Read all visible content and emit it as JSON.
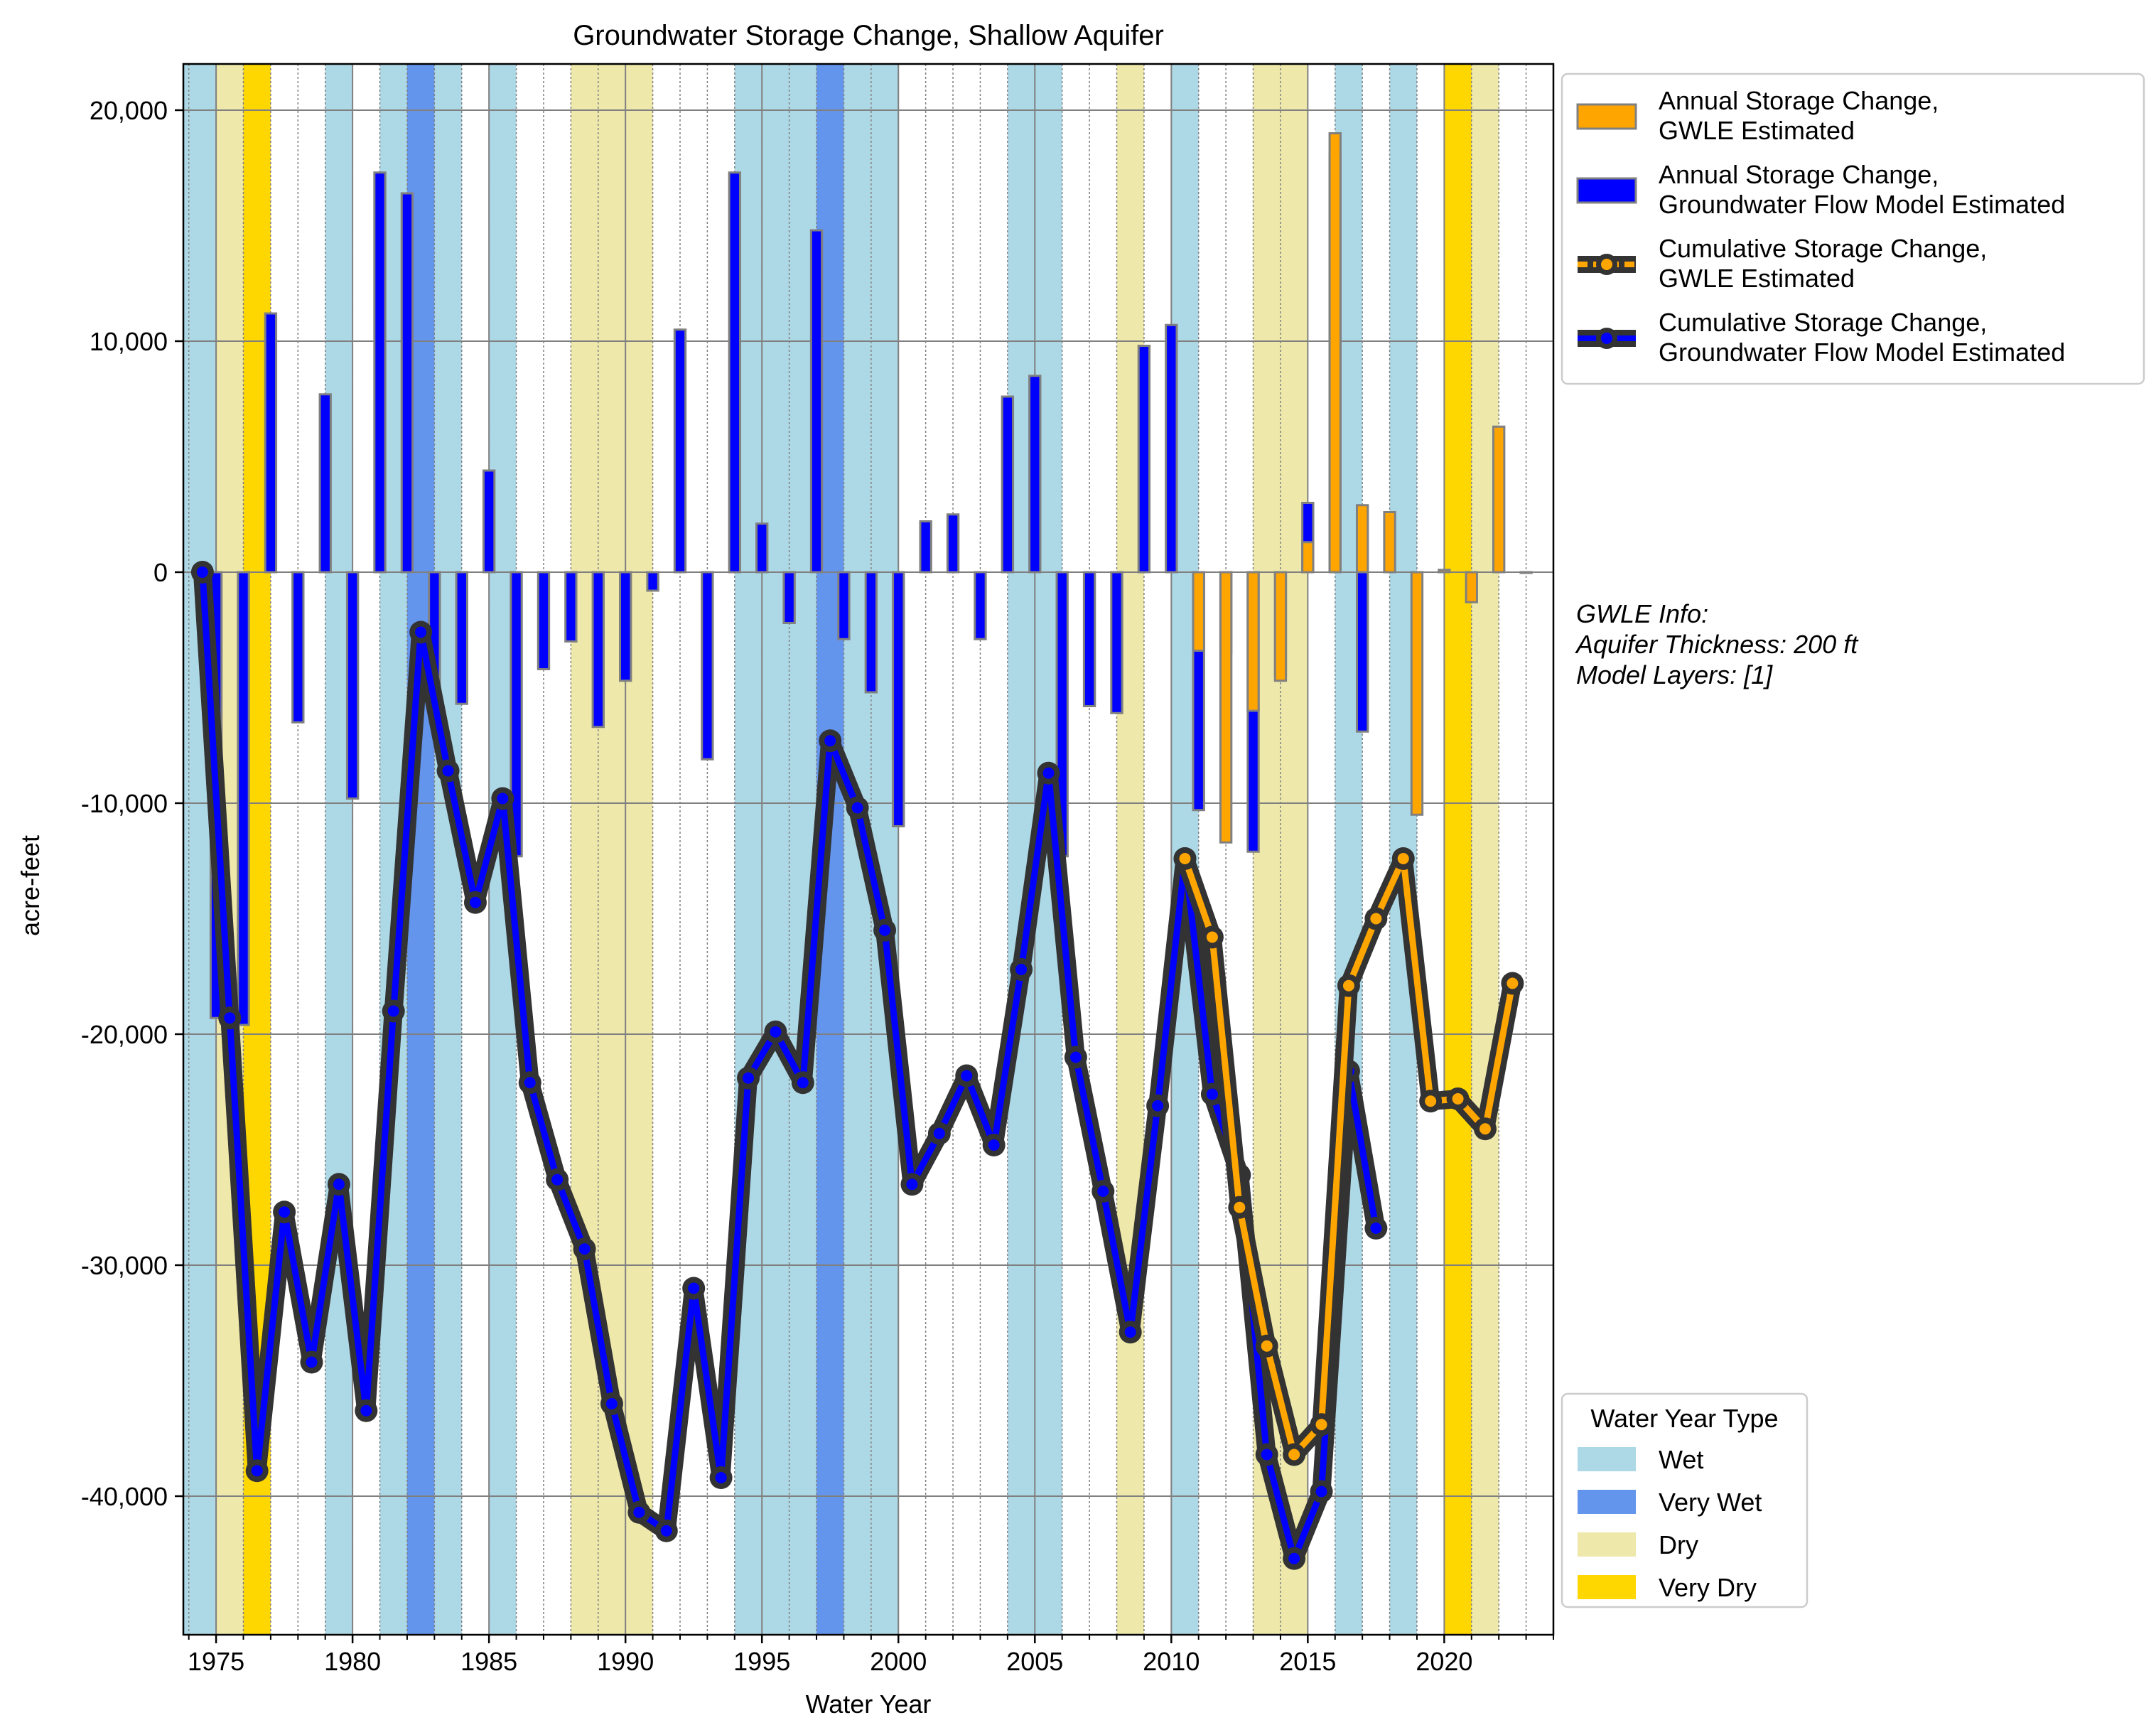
{
  "chart_data": {
    "type": "bar",
    "title": "Groundwater Storage Change, Shallow Aquifer",
    "xlabel": "Water Year",
    "ylabel": "acre-feet",
    "xlim": [
      1973.8,
      2024.0
    ],
    "ylim": [
      -46000,
      22000
    ],
    "x_ticks": [
      1975,
      1980,
      1985,
      1990,
      1995,
      2000,
      2005,
      2010,
      2015,
      2020
    ],
    "y_ticks": [
      20000,
      10000,
      0,
      -10000,
      -20000,
      -30000,
      -40000
    ],
    "y_tick_labels": [
      "20,000",
      "10,000",
      "0",
      "-10,000",
      "-20,000",
      "-30,000",
      "-40,000"
    ],
    "grid": true,
    "water_year_types": [
      {
        "name": "Wet",
        "color": "#add8e6",
        "years": [
          1974,
          1975,
          1980,
          1982,
          1984,
          1986,
          1995,
          1996,
          1997,
          1999,
          2000,
          2005,
          2006,
          2011,
          2017,
          2019
        ]
      },
      {
        "name": "Very Wet",
        "color": "#6495ed",
        "years": [
          1983,
          1998
        ]
      },
      {
        "name": "Dry",
        "color": "#eee8aa",
        "years": [
          1976,
          1989,
          1990,
          1991,
          2009,
          2014,
          2015,
          2022
        ]
      },
      {
        "name": "Very Dry",
        "color": "#ffd700",
        "years": [
          1977,
          2021
        ]
      }
    ],
    "series": [
      {
        "name": "Annual Storage Change, GWLE Estimated",
        "kind": "bar",
        "color": "#ffa500",
        "x": [
          2012,
          2013,
          2014,
          2015,
          2016,
          2017,
          2018,
          2019,
          2020,
          2021,
          2022,
          2023,
          2024
        ],
        "values": [
          -3400,
          -11700,
          -6000,
          -4700,
          1300,
          19000,
          2900,
          2600,
          -10500,
          100,
          -1300,
          6300,
          0
        ]
      },
      {
        "name": "Annual Storage Change, Groundwater Flow Model Estimated",
        "kind": "bar",
        "color": "#0000ff",
        "x": [
          1976,
          1977,
          1978,
          1979,
          1980,
          1981,
          1982,
          1983,
          1984,
          1985,
          1986,
          1987,
          1988,
          1989,
          1990,
          1991,
          1992,
          1993,
          1994,
          1995,
          1996,
          1997,
          1998,
          1999,
          2000,
          2001,
          2002,
          2003,
          2004,
          2005,
          2006,
          2007,
          2008,
          2009,
          2010,
          2011,
          2012,
          2013,
          2014,
          2015,
          2016,
          2017,
          2018
        ],
        "values": [
          -19300,
          -19600,
          11200,
          -6500,
          7700,
          -9800,
          17300,
          16400,
          -6000,
          -5700,
          4400,
          -12300,
          -4200,
          -3000,
          -6700,
          -4700,
          -800,
          10500,
          -8100,
          17300,
          2100,
          -2200,
          14800,
          -2900,
          -5200,
          -11000,
          2200,
          2500,
          -2900,
          7600,
          8500,
          -12300,
          -5800,
          -6100,
          9800,
          10700,
          -10300,
          -3500,
          -12100,
          -4500,
          3000,
          18100,
          -6900
        ]
      },
      {
        "name": "Cumulative Storage Change, GWLE Estimated",
        "kind": "line",
        "color": "#ffa500",
        "x": [
          2011,
          2012,
          2013,
          2014,
          2015,
          2016,
          2017,
          2018,
          2019,
          2020,
          2021,
          2022,
          2023
        ],
        "values": [
          -12400,
          -15800,
          -27500,
          -33500,
          -38200,
          -36900,
          -17900,
          -15000,
          -12400,
          -22900,
          -22800,
          -24100,
          -17800
        ]
      },
      {
        "name": "Cumulative Storage Change, Groundwater Flow Model Estimated",
        "kind": "line",
        "color": "#0000ff",
        "x": [
          1975,
          1976,
          1977,
          1978,
          1979,
          1980,
          1981,
          1982,
          1983,
          1984,
          1985,
          1986,
          1987,
          1988,
          1989,
          1990,
          1991,
          1992,
          1993,
          1994,
          1995,
          1996,
          1997,
          1998,
          1999,
          2000,
          2001,
          2002,
          2003,
          2004,
          2005,
          2006,
          2007,
          2008,
          2009,
          2010,
          2011,
          2012,
          2013,
          2014,
          2015,
          2016,
          2017,
          2018
        ],
        "values": [
          0,
          -19300,
          -38900,
          -27700,
          -34200,
          -26500,
          -36300,
          -19000,
          -2600,
          -8600,
          -14300,
          -9800,
          -22100,
          -26300,
          -29300,
          -36000,
          -40700,
          -41500,
          -31000,
          -39200,
          -21900,
          -19900,
          -22100,
          -7300,
          -10200,
          -15500,
          -26500,
          -24300,
          -21800,
          -24800,
          -17200,
          -8700,
          -21000,
          -26800,
          -32900,
          -23100,
          -12400,
          -22600,
          -26100,
          -38200,
          -42700,
          -39800,
          -21600,
          -28400
        ]
      }
    ],
    "legend_main": {
      "placement": "upper right outside",
      "entries": [
        {
          "line1": "Annual Storage Change,",
          "line2": "GWLE Estimated"
        },
        {
          "line1": "Annual Storage Change,",
          "line2": "Groundwater Flow Model Estimated"
        },
        {
          "line1": "Cumulative Storage Change,",
          "line2": "GWLE Estimated"
        },
        {
          "line1": "Cumulative Storage Change,",
          "line2": "Groundwater Flow Model Estimated"
        }
      ]
    },
    "legend_wyt": {
      "placement": "lower right outside",
      "title": "Water Year Type",
      "entries": [
        "Wet",
        "Very Wet",
        "Dry",
        "Very Dry"
      ]
    }
  },
  "annotation": {
    "line1": "GWLE Info:",
    "line2": "Aquifer Thickness: 200 ft",
    "line3": "Model Layers: [1]"
  }
}
